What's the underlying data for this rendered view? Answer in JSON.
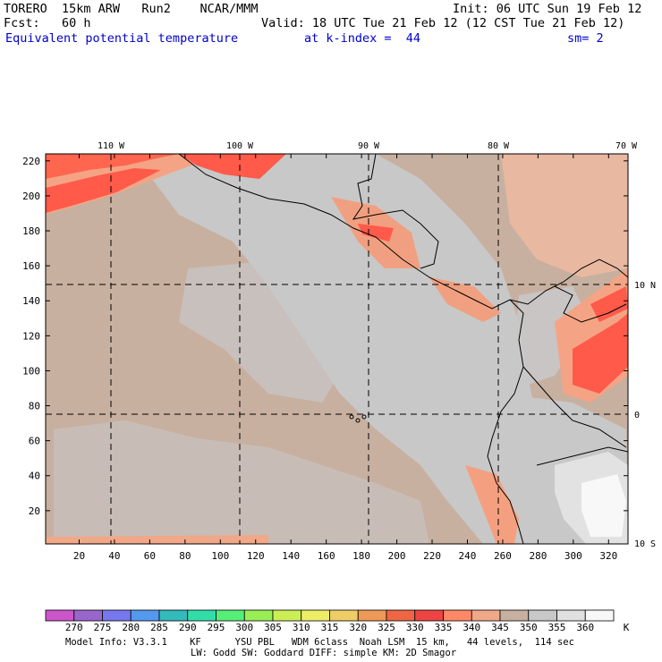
{
  "header": {
    "line1_left": "TORERO  15km ARW   Run2    NCAR/MMM",
    "line1_right": "Init: 06 UTC Sun 19 Feb 12",
    "line2_left": "Fcst:   60 h",
    "line2_right": "Valid: 18 UTC Tue 21 Feb 12 (12 CST Tue 21 Feb 12)",
    "field_name": "Equivalent potential temperature",
    "level": "at k-index =  44",
    "smoothing": "sm= 2"
  },
  "map": {
    "lon_labels": [
      "110 W",
      "100 W",
      "90 W",
      "80 W",
      "70 W"
    ],
    "lat_labels": [
      "10 N",
      "0",
      "10 S"
    ],
    "y_ticks": [
      "220",
      "200",
      "180",
      "160",
      "140",
      "120",
      "100",
      "80",
      "60",
      "40",
      "20"
    ],
    "x_ticks": [
      "20",
      "40",
      "60",
      "80",
      "100",
      "120",
      "140",
      "160",
      "180",
      "200",
      "220",
      "240",
      "260",
      "280",
      "300",
      "320"
    ]
  },
  "colorbar": {
    "labels": [
      "270",
      "275",
      "280",
      "285",
      "290",
      "295",
      "300",
      "305",
      "310",
      "315",
      "320",
      "325",
      "330",
      "335",
      "340",
      "345",
      "350",
      "355",
      "360"
    ],
    "unit": "K",
    "colors": [
      "#cc55cc",
      "#9966cc",
      "#7777ee",
      "#5599ee",
      "#33bbbb",
      "#33ddaa",
      "#55ee77",
      "#99ee55",
      "#ccee55",
      "#eeee66",
      "#eecc66",
      "#ee9955",
      "#ee6644",
      "#ee4444",
      "#ff8866",
      "#f0a888",
      "#c8b0a0",
      "#c8c8c8",
      "#e0e0e0",
      "#f8f8f8"
    ]
  },
  "footer": {
    "line1": "Model Info: V3.3.1    KF      YSU PBL   WDM 6class  Noah LSM  15 km,   44 levels,  114 sec",
    "line2": "LW: Godd SW: Goddard DIFF: simple KM: 2D Smagor"
  }
}
